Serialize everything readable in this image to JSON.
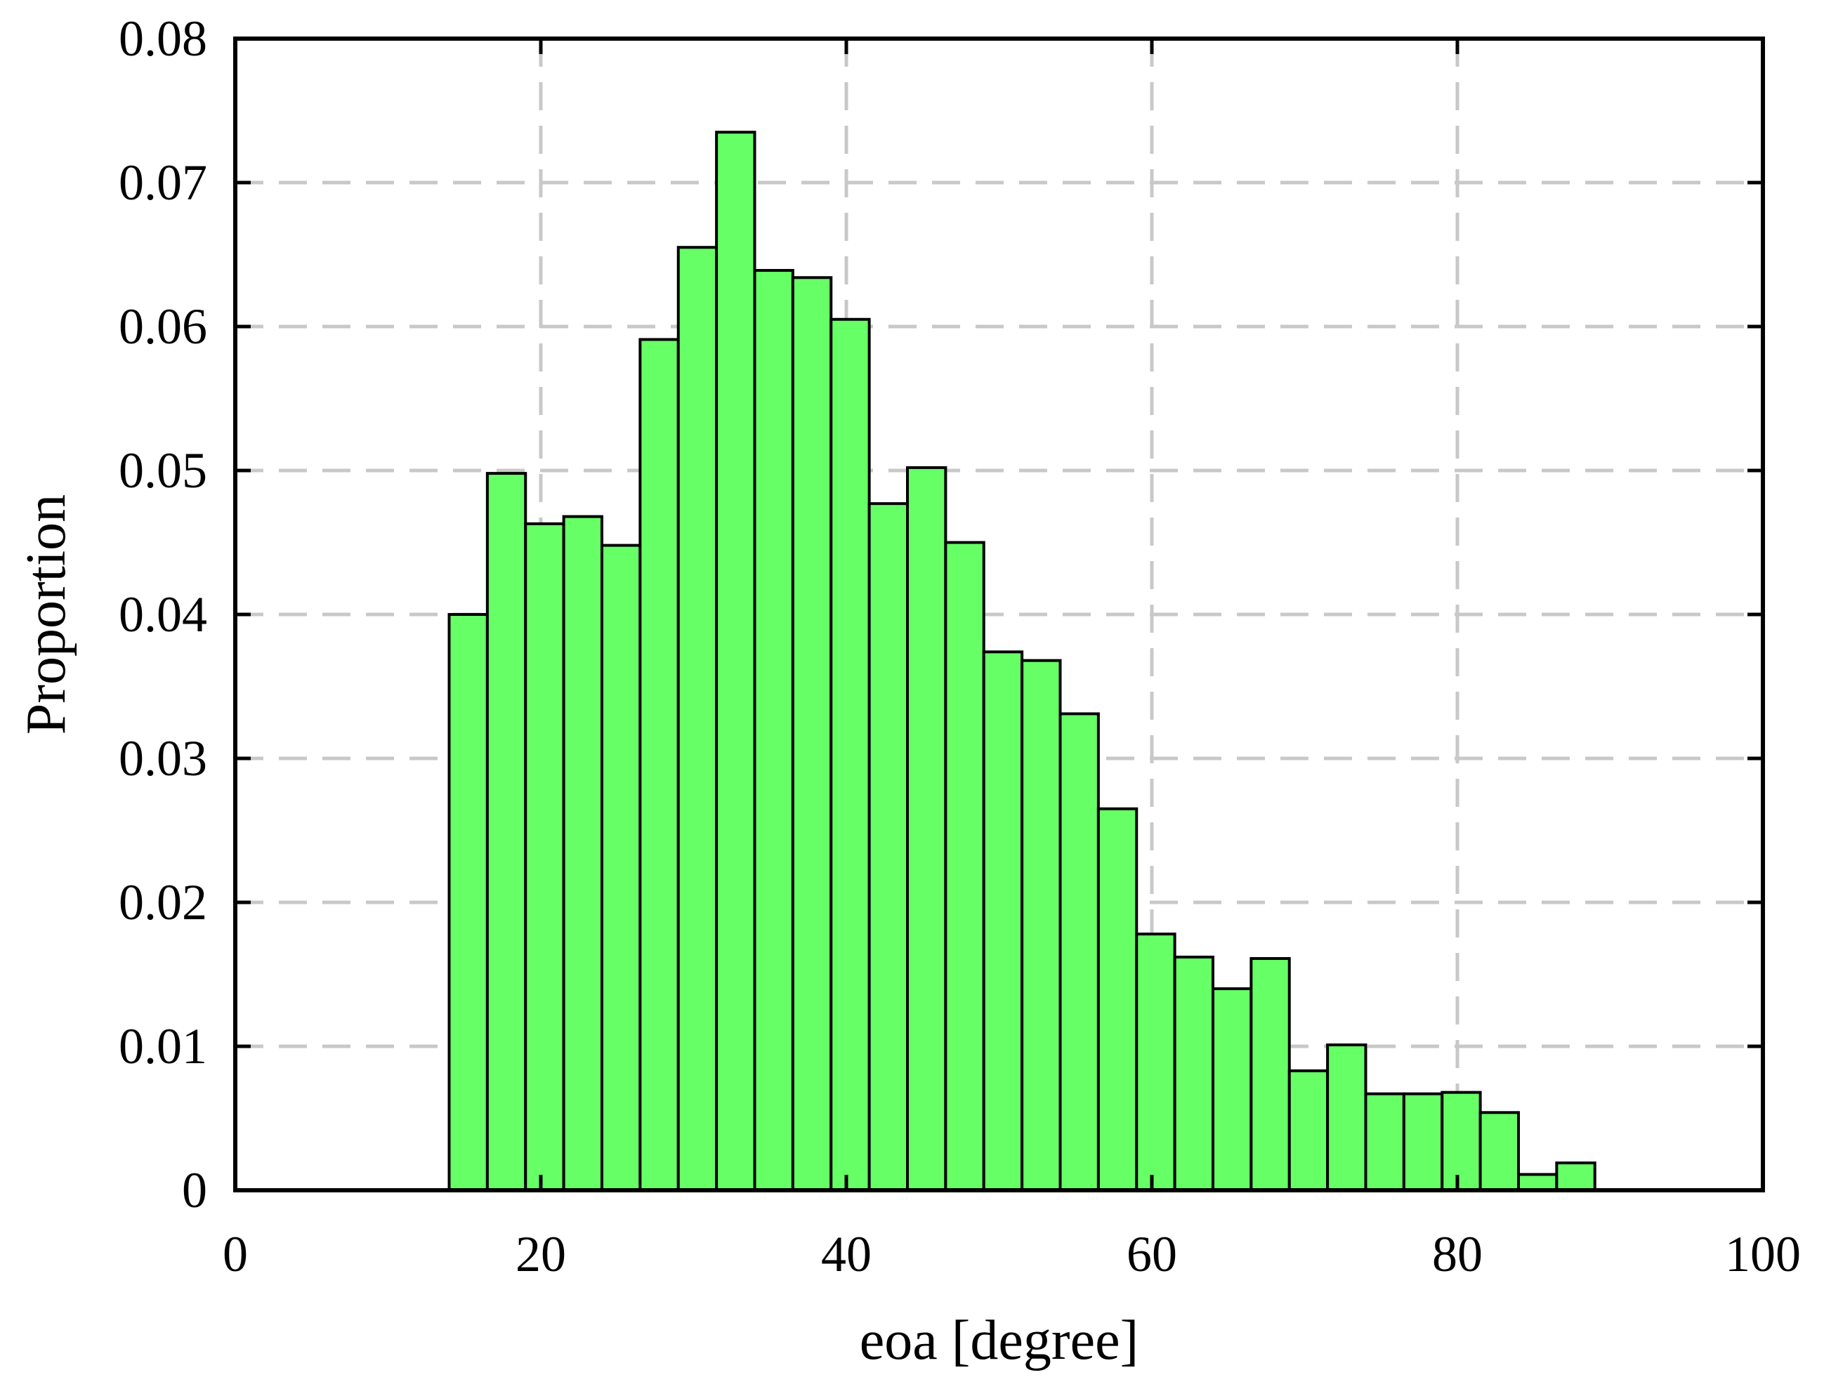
{
  "chart_data": {
    "type": "bar",
    "xlabel": "eoa [degree]",
    "ylabel": "Proportion",
    "xlim": [
      0,
      100
    ],
    "ylim": [
      0,
      0.08
    ],
    "xticks": [
      0,
      20,
      40,
      60,
      80,
      100
    ],
    "xtick_labels": [
      "0",
      "20",
      "40",
      "60",
      "80",
      "100"
    ],
    "yticks": [
      0,
      0.01,
      0.02,
      0.03,
      0.04,
      0.05,
      0.06,
      0.07,
      0.08
    ],
    "ytick_labels": [
      "0",
      "0.01",
      "0.02",
      "0.03",
      "0.04",
      "0.05",
      "0.06",
      "0.07",
      "0.08"
    ],
    "grid": true,
    "bar_color": "#66ff66",
    "bin_width": 2.5,
    "bin_starts": [
      14,
      16.5,
      19,
      21.5,
      24,
      26.5,
      29,
      31.5,
      34,
      36.5,
      39,
      41.5,
      44,
      46.5,
      49,
      51.5,
      54,
      56.5,
      59,
      61.5,
      64,
      66.5,
      69,
      71.5,
      74,
      76.5,
      79,
      81.5,
      84,
      86.5
    ],
    "values": [
      0.04,
      0.0498,
      0.0463,
      0.0468,
      0.0448,
      0.0591,
      0.0655,
      0.0735,
      0.0639,
      0.0634,
      0.0605,
      0.0477,
      0.0502,
      0.045,
      0.0374,
      0.0368,
      0.0331,
      0.0265,
      0.0178,
      0.0162,
      0.014,
      0.0161,
      0.0083,
      0.0101,
      0.0067,
      0.0067,
      0.0068,
      0.0054,
      0.0011,
      0.0019
    ]
  }
}
